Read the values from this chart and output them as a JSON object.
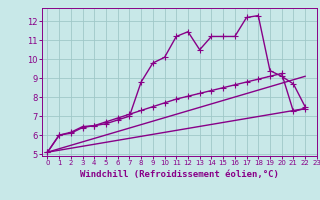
{
  "xlabel": "Windchill (Refroidissement éolien,°C)",
  "xlim": [
    -0.5,
    23
  ],
  "ylim": [
    4.9,
    12.7
  ],
  "yticks": [
    5,
    6,
    7,
    8,
    9,
    10,
    11,
    12
  ],
  "xticks": [
    0,
    1,
    2,
    3,
    4,
    5,
    6,
    7,
    8,
    9,
    10,
    11,
    12,
    13,
    14,
    15,
    16,
    17,
    18,
    19,
    20,
    21,
    22,
    23
  ],
  "bg_color": "#c8e8e8",
  "line_color": "#880088",
  "grid_color": "#a0c8c8",
  "line1_x": [
    0,
    1,
    2,
    3,
    4,
    5,
    6,
    7,
    8,
    9,
    10,
    11,
    12,
    13,
    14,
    15,
    16,
    17,
    18,
    19,
    20,
    21,
    22
  ],
  "line1_y": [
    5.1,
    6.0,
    6.1,
    6.4,
    6.5,
    6.6,
    6.8,
    7.0,
    8.8,
    9.8,
    10.1,
    11.2,
    11.45,
    10.5,
    11.2,
    11.2,
    11.2,
    12.2,
    12.3,
    9.4,
    9.1,
    8.7,
    7.5
  ],
  "line2_x": [
    0,
    1,
    2,
    3,
    4,
    5,
    6,
    7,
    8,
    9,
    10,
    11,
    12,
    13,
    14,
    15,
    16,
    17,
    18,
    19,
    20,
    21,
    22
  ],
  "line2_y": [
    5.1,
    6.0,
    6.15,
    6.45,
    6.5,
    6.7,
    6.9,
    7.1,
    7.3,
    7.5,
    7.7,
    7.9,
    8.05,
    8.2,
    8.35,
    8.5,
    8.65,
    8.8,
    8.95,
    9.1,
    9.25,
    7.25,
    7.4
  ],
  "line3_x": [
    0,
    22
  ],
  "line3_y": [
    5.1,
    7.4
  ],
  "line4_x": [
    0,
    22
  ],
  "line4_y": [
    5.1,
    9.1
  ],
  "marker": "+",
  "markersize": 4,
  "linewidth": 1.0
}
